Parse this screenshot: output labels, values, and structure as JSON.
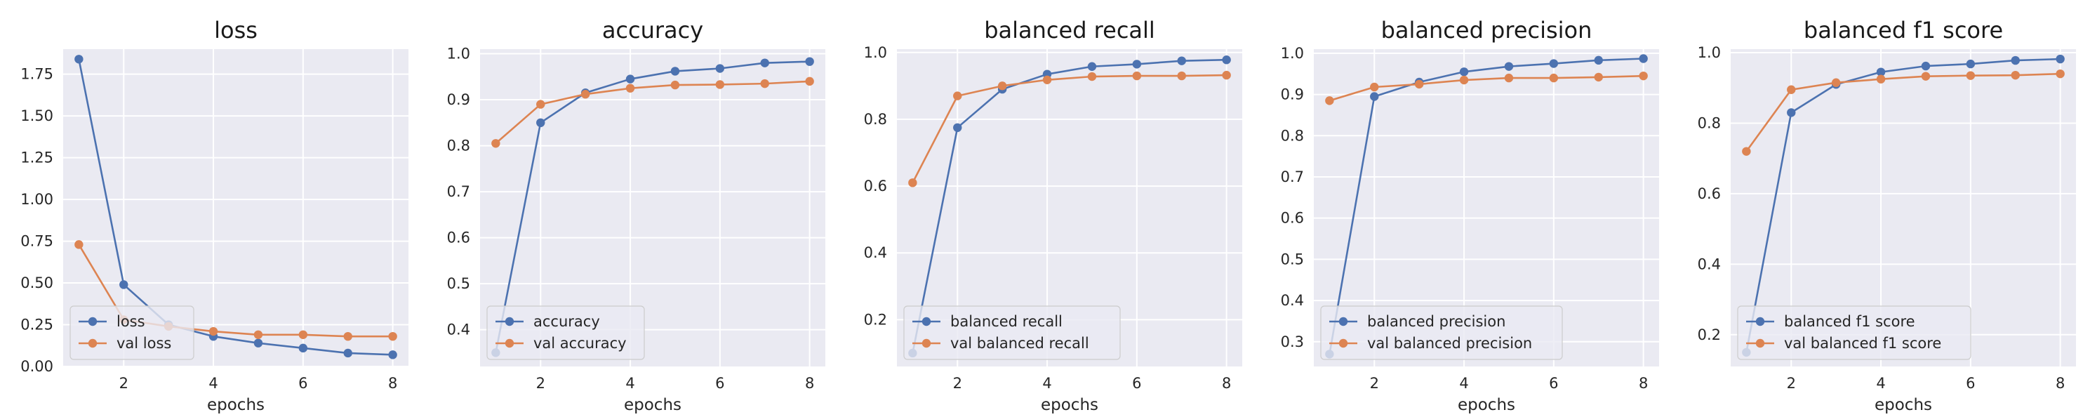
{
  "figure": {
    "background": "#ffffff"
  },
  "style": {
    "plot_bg": "#eaeaf2",
    "grid": "#ffffff",
    "train_color": "#4c72b0",
    "val_color": "#dd8452"
  },
  "chart_data": [
    {
      "type": "line",
      "title": "loss",
      "xlabel": "epochs",
      "ylabel": "",
      "x": [
        1,
        2,
        3,
        4,
        5,
        6,
        7,
        8
      ],
      "xlim": [
        0.65,
        8.35
      ],
      "xticks": [
        2,
        4,
        6,
        8
      ],
      "ylim": [
        0.0,
        1.9
      ],
      "yticks": [
        "0.00",
        "0.25",
        "0.50",
        "0.75",
        "1.00",
        "1.25",
        "1.50",
        "1.75"
      ],
      "grid": true,
      "legend_loc": "lower left",
      "series": [
        {
          "name": "loss",
          "color": "#4c72b0",
          "values": [
            1.84,
            0.49,
            0.25,
            0.18,
            0.14,
            0.11,
            0.08,
            0.07
          ]
        },
        {
          "name": "val loss",
          "color": "#dd8452",
          "values": [
            0.73,
            0.28,
            0.24,
            0.21,
            0.19,
            0.19,
            0.18,
            0.18
          ]
        }
      ]
    },
    {
      "type": "line",
      "title": "accuracy",
      "xlabel": "epochs",
      "ylabel": "",
      "x": [
        1,
        2,
        3,
        4,
        5,
        6,
        7,
        8
      ],
      "xlim": [
        0.65,
        8.35
      ],
      "xticks": [
        2,
        4,
        6,
        8
      ],
      "ylim": [
        0.32,
        1.01
      ],
      "yticks": [
        "0.4",
        "0.5",
        "0.6",
        "0.7",
        "0.8",
        "0.9",
        "1.0"
      ],
      "grid": true,
      "legend_loc": "lower left",
      "series": [
        {
          "name": "accuracy",
          "color": "#4c72b0",
          "values": [
            0.35,
            0.85,
            0.915,
            0.945,
            0.962,
            0.968,
            0.98,
            0.983
          ]
        },
        {
          "name": "val accuracy",
          "color": "#dd8452",
          "values": [
            0.805,
            0.89,
            0.912,
            0.925,
            0.932,
            0.933,
            0.935,
            0.94
          ]
        }
      ]
    },
    {
      "type": "line",
      "title": "balanced recall",
      "xlabel": "epochs",
      "ylabel": "",
      "x": [
        1,
        2,
        3,
        4,
        5,
        6,
        7,
        8
      ],
      "xlim": [
        0.65,
        8.35
      ],
      "xticks": [
        2,
        4,
        6,
        8
      ],
      "ylim": [
        0.06,
        1.01
      ],
      "yticks": [
        "0.2",
        "0.4",
        "0.6",
        "0.8",
        "1.0"
      ],
      "grid": true,
      "legend_loc": "lower left",
      "series": [
        {
          "name": "balanced recall",
          "color": "#4c72b0",
          "values": [
            0.1,
            0.775,
            0.89,
            0.935,
            0.958,
            0.965,
            0.975,
            0.978
          ]
        },
        {
          "name": "val balanced recall",
          "color": "#dd8452",
          "values": [
            0.61,
            0.87,
            0.9,
            0.918,
            0.928,
            0.93,
            0.93,
            0.932
          ]
        }
      ]
    },
    {
      "type": "line",
      "title": "balanced precision",
      "xlabel": "epochs",
      "ylabel": "",
      "x": [
        1,
        2,
        3,
        4,
        5,
        6,
        7,
        8
      ],
      "xlim": [
        0.65,
        8.35
      ],
      "xticks": [
        2,
        4,
        6,
        8
      ],
      "ylim": [
        0.24,
        1.01
      ],
      "yticks": [
        "0.3",
        "0.4",
        "0.5",
        "0.6",
        "0.7",
        "0.8",
        "0.9",
        "1.0"
      ],
      "grid": true,
      "legend_loc": "lower left",
      "series": [
        {
          "name": "balanced precision",
          "color": "#4c72b0",
          "values": [
            0.27,
            0.895,
            0.93,
            0.955,
            0.968,
            0.975,
            0.983,
            0.987
          ]
        },
        {
          "name": "val balanced precision",
          "color": "#dd8452",
          "values": [
            0.885,
            0.918,
            0.925,
            0.935,
            0.94,
            0.94,
            0.942,
            0.945
          ]
        }
      ]
    },
    {
      "type": "line",
      "title": "balanced f1 score",
      "xlabel": "epochs",
      "ylabel": "",
      "x": [
        1,
        2,
        3,
        4,
        5,
        6,
        7,
        8
      ],
      "xlim": [
        0.65,
        8.35
      ],
      "xticks": [
        2,
        4,
        6,
        8
      ],
      "ylim": [
        0.11,
        1.01
      ],
      "yticks": [
        "0.2",
        "0.4",
        "0.6",
        "0.8",
        "1.0"
      ],
      "grid": true,
      "legend_loc": "lower left",
      "series": [
        {
          "name": "balanced f1 score",
          "color": "#4c72b0",
          "values": [
            0.15,
            0.83,
            0.91,
            0.945,
            0.962,
            0.968,
            0.978,
            0.982
          ]
        },
        {
          "name": "val balanced f1 score",
          "color": "#dd8452",
          "values": [
            0.72,
            0.895,
            0.915,
            0.925,
            0.933,
            0.935,
            0.936,
            0.94
          ]
        }
      ]
    }
  ]
}
